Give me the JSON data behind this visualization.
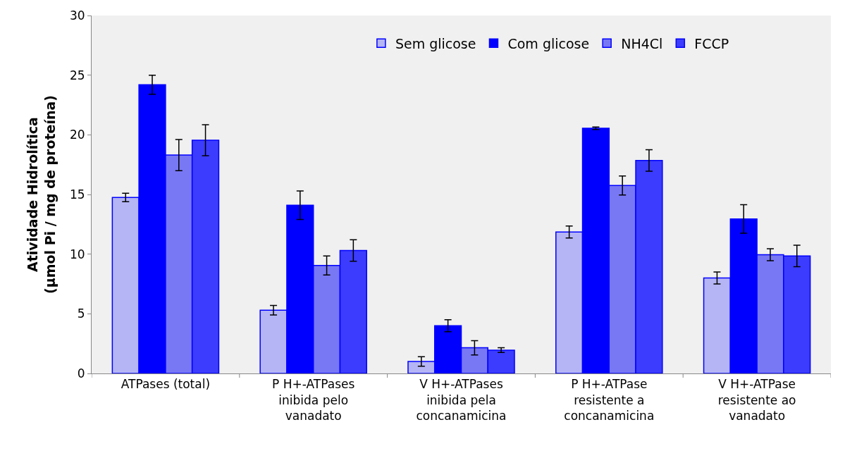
{
  "chart_data": {
    "type": "bar",
    "ylabel": "Atividade Hidrolítica\n(µmol Pi / mg de proteína)",
    "categories": [
      "ATPases (total)",
      "P H+-ATPases\ninibida pelo\nvanadato",
      "V H+-ATPases\ninibida pela\nconcanamicina",
      "P H+-ATPase\nresistente a\nconcanamicina",
      "V H+-ATPase\nresistente ao\nvanadato"
    ],
    "series": [
      {
        "name": "Sem glicose",
        "color": "#b5b5f5",
        "values": [
          14.75,
          5.3,
          1.0,
          11.85,
          8.0
        ],
        "errors": [
          0.35,
          0.4,
          0.4,
          0.5,
          0.5
        ]
      },
      {
        "name": "Com glicose",
        "color": "#0000ff",
        "values": [
          24.2,
          14.1,
          4.0,
          20.55,
          12.95
        ],
        "errors": [
          0.8,
          1.2,
          0.5,
          0.1,
          1.2
        ]
      },
      {
        "name": "NH4Cl",
        "color": "#7878f5",
        "values": [
          18.3,
          9.05,
          2.15,
          15.75,
          9.95
        ],
        "errors": [
          1.3,
          0.8,
          0.6,
          0.8,
          0.5
        ]
      },
      {
        "name": "FCCP",
        "color": "#3c3cff",
        "values": [
          19.55,
          10.3,
          1.95,
          17.85,
          9.85
        ],
        "errors": [
          1.3,
          0.9,
          0.2,
          0.9,
          0.9
        ]
      }
    ],
    "ylim": [
      0,
      30
    ],
    "yticks": [
      0,
      5,
      10,
      15,
      20,
      25,
      30
    ],
    "grid": false,
    "legend": "top"
  }
}
